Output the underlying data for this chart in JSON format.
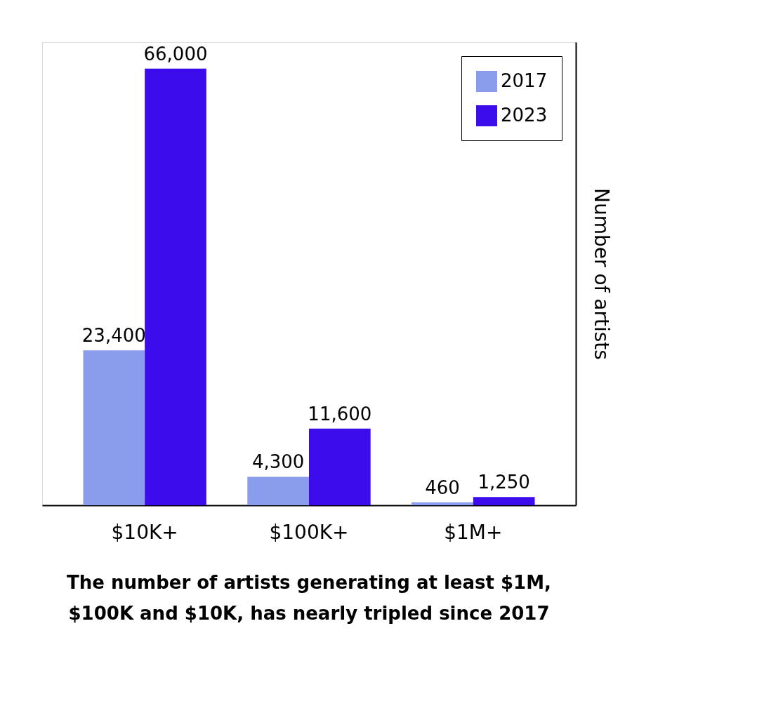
{
  "chart_data": {
    "type": "bar",
    "categories": [
      "$10K+",
      "$100K+",
      "$1M+"
    ],
    "series": [
      {
        "name": "2017",
        "color": "#8a9cec",
        "values": [
          23400,
          4300,
          460
        ],
        "value_labels": [
          "23,400",
          "4,300",
          "460"
        ]
      },
      {
        "name": "2023",
        "color": "#3d0ceb",
        "values": [
          66000,
          11600,
          1250
        ],
        "value_labels": [
          "66,000",
          "11,600",
          "1,250"
        ]
      }
    ],
    "ylabel": "Number of artists",
    "legend": "top right",
    "grid": false,
    "annotations": [
      "The number of artists generating at least $1M, $100K and $10K, has nearly tripled since 2017"
    ]
  }
}
